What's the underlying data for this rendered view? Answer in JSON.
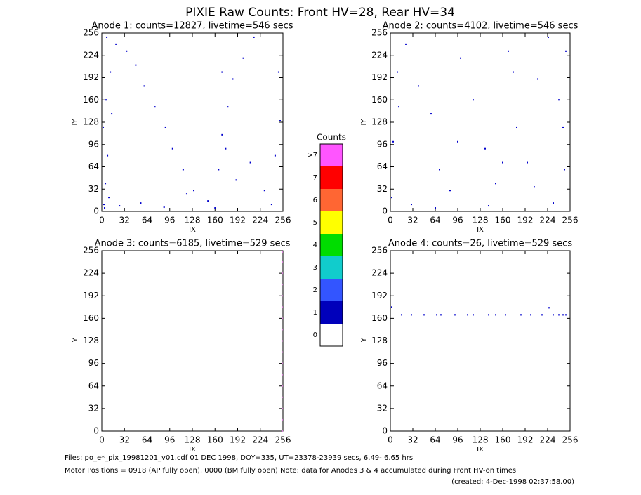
{
  "title": "PIXIE Raw Counts:  Front HV=28, Rear HV=34",
  "footer": [
    "Files: po_e*_pix_19981201_v01.cdf    01 DEC 1998, DOY=335, UT=23378-23939 secs,  6.49-  6.65 hrs",
    "Motor Positions = 0918 (AP fully open), 0000 (BM fully open)    Note: data for Anodes 3 & 4 accumulated during Front HV-on times",
    "(created:  4-Dec-1998 02:37:58.00)"
  ],
  "chart_data": [
    {
      "type": "scatter",
      "title": "Anode 1: counts=12827, livetime=546 secs",
      "x_label": "IX",
      "y_label": "IY",
      "xlim": [
        0,
        256
      ],
      "ylim": [
        0,
        256
      ],
      "xticks": [
        0,
        32,
        64,
        96,
        128,
        160,
        192,
        224,
        256
      ],
      "yticks": [
        0,
        32,
        64,
        96,
        128,
        160,
        192,
        224,
        256
      ],
      "color": "#0000cc",
      "x": [
        3,
        5,
        8,
        2,
        6,
        12,
        20,
        35,
        48,
        60,
        75,
        90,
        100,
        115,
        130,
        150,
        165,
        170,
        178,
        185,
        200,
        215,
        230,
        245,
        252,
        4,
        7,
        10,
        25,
        55,
        88,
        120,
        160,
        175,
        190,
        210,
        240,
        250,
        14,
        170
      ],
      "values": [
        10,
        40,
        80,
        120,
        160,
        200,
        240,
        230,
        210,
        180,
        150,
        120,
        90,
        60,
        30,
        15,
        60,
        110,
        150,
        190,
        220,
        250,
        30,
        80,
        130,
        5,
        250,
        20,
        8,
        12,
        6,
        25,
        5,
        90,
        45,
        70,
        10,
        200,
        140,
        200
      ]
    },
    {
      "type": "scatter",
      "title": "Anode 2: counts=4102, livetime=546 secs",
      "x_label": "IX",
      "y_label": "IY",
      "xlim": [
        0,
        256
      ],
      "ylim": [
        0,
        256
      ],
      "xticks": [
        0,
        32,
        64,
        96,
        128,
        160,
        192,
        224,
        256
      ],
      "yticks": [
        0,
        32,
        64,
        96,
        128,
        160,
        192,
        224,
        256
      ],
      "color": "#0000cc",
      "x": [
        2,
        4,
        10,
        22,
        40,
        58,
        70,
        85,
        100,
        118,
        135,
        150,
        168,
        180,
        195,
        210,
        225,
        240,
        248,
        250,
        30,
        64,
        96,
        140,
        175,
        205,
        232,
        246,
        12,
        160
      ],
      "values": [
        20,
        100,
        200,
        240,
        180,
        140,
        60,
        30,
        220,
        160,
        90,
        40,
        230,
        120,
        70,
        190,
        250,
        160,
        60,
        230,
        10,
        5,
        100,
        8,
        200,
        35,
        12,
        120,
        150,
        70
      ]
    },
    {
      "type": "scatter",
      "title": "Anode 3: counts=6185, livetime=529 secs",
      "x_label": "IX",
      "y_label": "IY",
      "xlim": [
        0,
        256
      ],
      "ylim": [
        0,
        256
      ],
      "xticks": [
        0,
        32,
        64,
        96,
        128,
        160,
        192,
        224,
        256
      ],
      "yticks": [
        0,
        32,
        64,
        96,
        128,
        160,
        192,
        224,
        256
      ],
      "color": "#e080e0",
      "x": [
        255,
        255,
        255,
        255,
        255,
        255,
        255,
        255,
        255,
        255,
        255,
        255,
        255,
        255,
        255,
        255,
        255
      ],
      "values": [
        0,
        16,
        32,
        48,
        64,
        80,
        96,
        112,
        128,
        144,
        160,
        176,
        192,
        208,
        224,
        240,
        254
      ]
    },
    {
      "type": "scatter",
      "title": "Anode 4: counts=26, livetime=529 secs",
      "x_label": "IX",
      "y_label": "IY",
      "xlim": [
        0,
        256
      ],
      "ylim": [
        0,
        256
      ],
      "xticks": [
        0,
        32,
        64,
        96,
        128,
        160,
        192,
        224,
        256
      ],
      "yticks": [
        0,
        32,
        64,
        96,
        128,
        160,
        192,
        224,
        256
      ],
      "color": "#0000cc",
      "x": [
        2,
        16,
        30,
        48,
        66,
        72,
        92,
        110,
        118,
        140,
        150,
        164,
        186,
        200,
        216,
        226,
        232,
        240,
        246,
        250
      ],
      "values": [
        176,
        165,
        165,
        165,
        165,
        165,
        165,
        165,
        165,
        165,
        165,
        165,
        165,
        165,
        165,
        175,
        165,
        165,
        165,
        165
      ]
    },
    {
      "type": "colorbar",
      "title": "Counts",
      "categories": [
        "0",
        "1",
        "2",
        "3",
        "4",
        "5",
        "6",
        "7",
        ">7"
      ],
      "colors": [
        "#ffffff",
        "#0000bb",
        "#3355ff",
        "#11cccc",
        "#00dd00",
        "#ffff00",
        "#ff6633",
        "#ff0000",
        "#ff55ff"
      ]
    }
  ]
}
